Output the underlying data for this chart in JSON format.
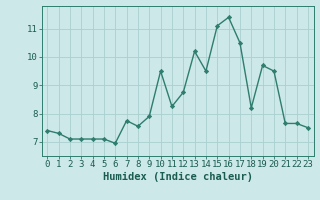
{
  "xlabel": "Humidex (Indice chaleur)",
  "ylabel": "",
  "x": [
    0,
    1,
    2,
    3,
    4,
    5,
    6,
    7,
    8,
    9,
    10,
    11,
    12,
    13,
    14,
    15,
    16,
    17,
    18,
    19,
    20,
    21,
    22,
    23
  ],
  "y": [
    7.4,
    7.3,
    7.1,
    7.1,
    7.1,
    7.1,
    6.95,
    7.75,
    7.55,
    7.9,
    9.5,
    8.25,
    8.75,
    10.2,
    9.5,
    11.1,
    11.4,
    10.5,
    8.2,
    9.7,
    9.5,
    7.65,
    7.65,
    7.5
  ],
  "line_color": "#2e7d6e",
  "marker": "D",
  "marker_size": 2.2,
  "bg_color": "#cce8e8",
  "grid_color": "#aacfcf",
  "ylim": [
    6.5,
    11.8
  ],
  "yticks": [
    7,
    8,
    9,
    10,
    11
  ],
  "xlim": [
    -0.5,
    23.5
  ],
  "xticks": [
    0,
    1,
    2,
    3,
    4,
    5,
    6,
    7,
    8,
    9,
    10,
    11,
    12,
    13,
    14,
    15,
    16,
    17,
    18,
    19,
    20,
    21,
    22,
    23
  ],
  "xlabel_fontsize": 7.5,
  "tick_fontsize": 6.5,
  "line_width": 1.0,
  "axis_color": "#2e7d6e",
  "tick_color": "#1a5c50",
  "label_color": "#1a5c50"
}
